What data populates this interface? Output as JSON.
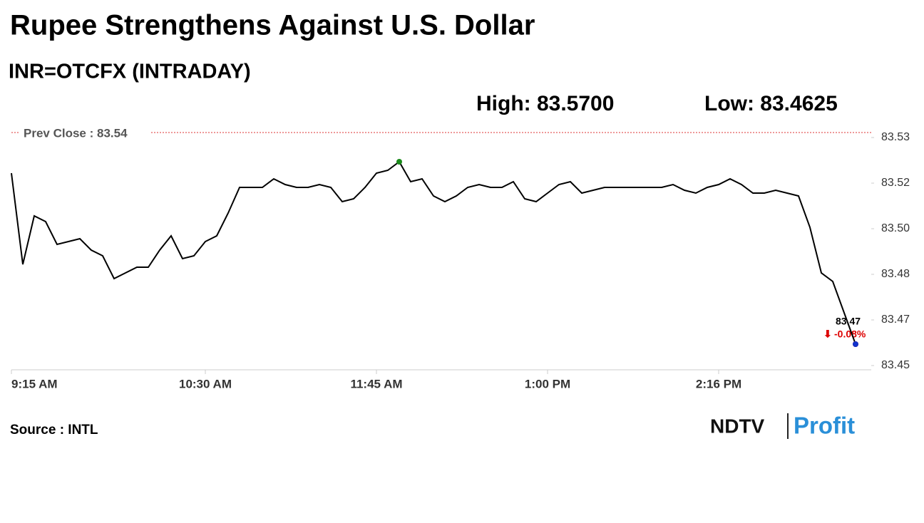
{
  "chart_data": {
    "type": "line",
    "title": "Rupee Strengthens Against U.S. Dollar",
    "subtitle": "INR=OTCFX (INTRADAY)",
    "high_label": "High: 83.5700",
    "low_label": "Low: 83.4625",
    "prev_close_label": "Prev Close : 83.54",
    "last_value_label": "83.47",
    "change_label": "-0.08%",
    "source": "Source : INTL",
    "logo": [
      "NDTV",
      "Profit"
    ],
    "categories": [
      "9:15 AM",
      null,
      null,
      null,
      null,
      null,
      null,
      null,
      null,
      null,
      null,
      null,
      null,
      null,
      null,
      null,
      null,
      "10:30 AM",
      null,
      null,
      null,
      null,
      null,
      null,
      null,
      null,
      null,
      null,
      null,
      null,
      null,
      null,
      "11:45 AM",
      null,
      null,
      null,
      null,
      null,
      null,
      null,
      null,
      null,
      null,
      null,
      null,
      null,
      null,
      "1:00 PM",
      null,
      null,
      null,
      null,
      null,
      null,
      null,
      null,
      null,
      null,
      null,
      null,
      null,
      null,
      "2:16 PM",
      null,
      null,
      null,
      null,
      null,
      null,
      null,
      null,
      null,
      null,
      null,
      null
    ],
    "series": [
      {
        "name": "INR=OTCFX",
        "color": "#000000",
        "values": [
          83.52,
          83.488,
          83.505,
          83.503,
          83.495,
          83.496,
          83.497,
          83.493,
          83.491,
          83.483,
          83.485,
          83.487,
          83.487,
          83.493,
          83.498,
          83.49,
          83.491,
          83.496,
          83.498,
          83.506,
          83.515,
          83.515,
          83.515,
          83.518,
          83.516,
          83.515,
          83.515,
          83.516,
          83.515,
          83.51,
          83.511,
          83.515,
          83.52,
          83.521,
          83.524,
          83.517,
          83.518,
          83.512,
          83.51,
          83.512,
          83.515,
          83.516,
          83.515,
          83.515,
          83.517,
          83.511,
          83.51,
          83.513,
          83.516,
          83.517,
          83.513,
          83.514,
          83.515,
          83.515,
          83.515,
          83.515,
          83.515,
          83.515,
          83.516,
          83.514,
          83.513,
          83.515,
          83.516,
          83.518,
          83.516,
          83.513,
          83.513,
          83.514,
          83.513,
          83.512,
          83.501,
          83.485,
          83.482,
          83.471,
          83.46
        ]
      }
    ],
    "ylim": [
      83.451,
      83.536
    ],
    "yticks": [
      {
        "value": 83.4525,
        "label": "83.45"
      },
      {
        "value": 83.4685,
        "label": "83.47"
      },
      {
        "value": 83.4845,
        "label": "83.48"
      },
      {
        "value": 83.5005,
        "label": "83.50"
      },
      {
        "value": 83.5165,
        "label": "83.52"
      },
      {
        "value": 83.5325,
        "label": "83.53"
      }
    ],
    "grid": false
  }
}
